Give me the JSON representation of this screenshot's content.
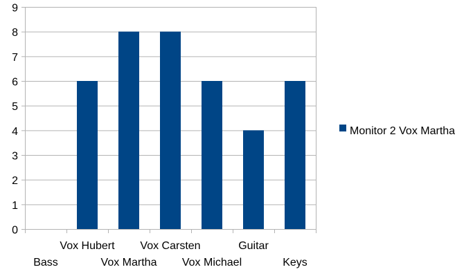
{
  "chart_data": {
    "type": "bar",
    "title": "",
    "xlabel": "",
    "ylabel": "",
    "categories": [
      "Bass",
      "Vox Hubert",
      "Vox Martha",
      "Vox Carsten",
      "Vox Michael",
      "Guitar",
      "Keys"
    ],
    "series": [
      {
        "name": "Monitor 2 Vox Martha",
        "color": "#004586",
        "values": [
          0,
          6,
          8,
          8,
          6,
          4,
          6
        ]
      }
    ],
    "ylim": [
      0,
      9
    ],
    "yticks": [
      0,
      1,
      2,
      3,
      4,
      5,
      6,
      7,
      8,
      9
    ],
    "grid": true,
    "legend_position": "right"
  }
}
